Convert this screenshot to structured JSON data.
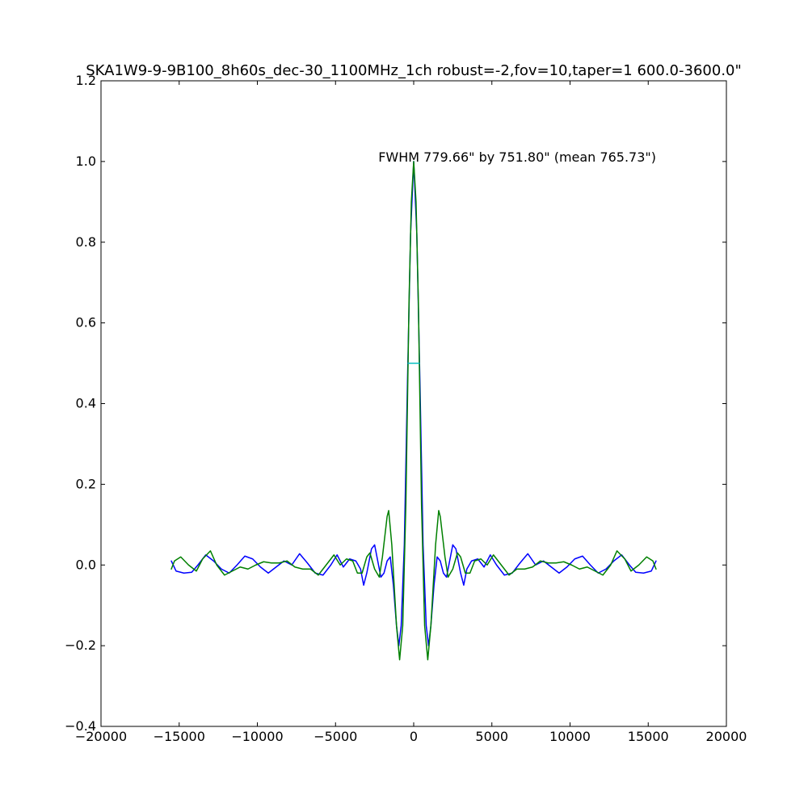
{
  "chart_data": {
    "type": "line",
    "title": "SKA1W9-9-9B100_8h60s_dec-30_1100MHz_1ch robust=-2,fov=10,taper=1  600.0-3600.0\"",
    "xlabel": "",
    "ylabel": "",
    "xlim": [
      -20000,
      20000
    ],
    "ylim": [
      -0.4,
      1.2
    ],
    "xticks": [
      -20000,
      -15000,
      -10000,
      -5000,
      0,
      5000,
      10000,
      15000,
      20000
    ],
    "xtick_labels": [
      "−20000",
      "−15000",
      "−10000",
      "−5000",
      "0",
      "5000",
      "10000",
      "15000",
      "20000"
    ],
    "yticks": [
      -0.4,
      -0.2,
      0.0,
      0.2,
      0.4,
      0.6,
      0.8,
      1.0,
      1.2
    ],
    "ytick_labels": [
      "−0.4",
      "−0.2",
      "0.0",
      "0.2",
      "0.4",
      "0.6",
      "0.8",
      "1.0",
      "1.2"
    ],
    "grid": false,
    "annotation": "FWHM 779.66\" by 751.80\" (mean 765.73\")",
    "fwhm_marker": {
      "x": [
        -383,
        383
      ],
      "y": 0.5,
      "color": "#00bfbf"
    },
    "series": [
      {
        "color": "#0000ff",
        "points": [
          [
            -15500,
            0.01
          ],
          [
            -15200,
            -0.015
          ],
          [
            -14700,
            -0.02
          ],
          [
            -14200,
            -0.018
          ],
          [
            -13800,
            0.0
          ],
          [
            -13300,
            0.025
          ],
          [
            -12800,
            0.01
          ],
          [
            -12300,
            -0.01
          ],
          [
            -11800,
            -0.02
          ],
          [
            -11300,
            0.0
          ],
          [
            -10800,
            0.022
          ],
          [
            -10300,
            0.015
          ],
          [
            -9800,
            -0.005
          ],
          [
            -9300,
            -0.02
          ],
          [
            -8800,
            -0.005
          ],
          [
            -8300,
            0.01
          ],
          [
            -7800,
            0.0
          ],
          [
            -7300,
            0.028
          ],
          [
            -6800,
            0.005
          ],
          [
            -6300,
            -0.02
          ],
          [
            -5800,
            -0.025
          ],
          [
            -5300,
            0.0
          ],
          [
            -4900,
            0.025
          ],
          [
            -4500,
            -0.005
          ],
          [
            -4100,
            0.015
          ],
          [
            -3700,
            0.01
          ],
          [
            -3400,
            -0.01
          ],
          [
            -3200,
            -0.05
          ],
          [
            -3000,
            -0.02
          ],
          [
            -2700,
            0.04
          ],
          [
            -2500,
            0.05
          ],
          [
            -2300,
            0.01
          ],
          [
            -2100,
            -0.03
          ],
          [
            -1900,
            -0.02
          ],
          [
            -1700,
            0.01
          ],
          [
            -1500,
            0.02
          ],
          [
            -1300,
            -0.05
          ],
          [
            -1100,
            -0.15
          ],
          [
            -950,
            -0.2
          ],
          [
            -800,
            -0.15
          ],
          [
            -600,
            0.05
          ],
          [
            -400,
            0.45
          ],
          [
            -200,
            0.82
          ],
          [
            0,
            1.0
          ],
          [
            200,
            0.82
          ],
          [
            400,
            0.45
          ],
          [
            600,
            0.05
          ],
          [
            800,
            -0.15
          ],
          [
            950,
            -0.2
          ],
          [
            1100,
            -0.15
          ],
          [
            1300,
            -0.05
          ],
          [
            1500,
            0.02
          ],
          [
            1700,
            0.01
          ],
          [
            1900,
            -0.02
          ],
          [
            2100,
            -0.03
          ],
          [
            2300,
            0.01
          ],
          [
            2500,
            0.05
          ],
          [
            2700,
            0.04
          ],
          [
            3000,
            -0.02
          ],
          [
            3200,
            -0.05
          ],
          [
            3400,
            -0.01
          ],
          [
            3700,
            0.01
          ],
          [
            4100,
            0.015
          ],
          [
            4500,
            -0.005
          ],
          [
            4900,
            0.025
          ],
          [
            5300,
            0.0
          ],
          [
            5800,
            -0.025
          ],
          [
            6300,
            -0.02
          ],
          [
            6800,
            0.005
          ],
          [
            7300,
            0.028
          ],
          [
            7800,
            0.0
          ],
          [
            8300,
            0.01
          ],
          [
            8800,
            -0.005
          ],
          [
            9300,
            -0.02
          ],
          [
            9800,
            -0.005
          ],
          [
            10300,
            0.015
          ],
          [
            10800,
            0.022
          ],
          [
            11300,
            0.0
          ],
          [
            11800,
            -0.02
          ],
          [
            12300,
            -0.01
          ],
          [
            12800,
            0.01
          ],
          [
            13300,
            0.025
          ],
          [
            13800,
            0.0
          ],
          [
            14200,
            -0.018
          ],
          [
            14700,
            -0.02
          ],
          [
            15200,
            -0.015
          ],
          [
            15500,
            0.01
          ]
        ]
      },
      {
        "color": "#008000",
        "points": [
          [
            -15500,
            -0.01
          ],
          [
            -15300,
            0.01
          ],
          [
            -14900,
            0.02
          ],
          [
            -14400,
            0.0
          ],
          [
            -13900,
            -0.015
          ],
          [
            -13500,
            0.015
          ],
          [
            -13000,
            0.035
          ],
          [
            -12600,
            0.0
          ],
          [
            -12100,
            -0.025
          ],
          [
            -11600,
            -0.015
          ],
          [
            -11100,
            -0.005
          ],
          [
            -10600,
            -0.01
          ],
          [
            -10100,
            0.0
          ],
          [
            -9600,
            0.008
          ],
          [
            -9100,
            0.005
          ],
          [
            -8600,
            0.005
          ],
          [
            -8100,
            0.01
          ],
          [
            -7600,
            -0.005
          ],
          [
            -7100,
            -0.01
          ],
          [
            -6600,
            -0.01
          ],
          [
            -6100,
            -0.025
          ],
          [
            -5600,
            0.0
          ],
          [
            -5100,
            0.025
          ],
          [
            -4700,
            0.0
          ],
          [
            -4300,
            0.015
          ],
          [
            -3900,
            0.01
          ],
          [
            -3600,
            -0.02
          ],
          [
            -3300,
            -0.02
          ],
          [
            -3000,
            0.02
          ],
          [
            -2800,
            0.03
          ],
          [
            -2500,
            -0.01
          ],
          [
            -2200,
            -0.03
          ],
          [
            -2000,
            0.02
          ],
          [
            -1700,
            0.12
          ],
          [
            -1600,
            0.135
          ],
          [
            -1400,
            0.05
          ],
          [
            -1100,
            -0.15
          ],
          [
            -900,
            -0.235
          ],
          [
            -700,
            -0.15
          ],
          [
            -500,
            0.15
          ],
          [
            -300,
            0.65
          ],
          [
            -150,
            0.9
          ],
          [
            0,
            1.0
          ],
          [
            150,
            0.9
          ],
          [
            300,
            0.65
          ],
          [
            500,
            0.15
          ],
          [
            700,
            -0.15
          ],
          [
            900,
            -0.235
          ],
          [
            1100,
            -0.15
          ],
          [
            1400,
            0.05
          ],
          [
            1600,
            0.135
          ],
          [
            1700,
            0.12
          ],
          [
            2000,
            0.02
          ],
          [
            2200,
            -0.03
          ],
          [
            2500,
            -0.01
          ],
          [
            2800,
            0.03
          ],
          [
            3000,
            0.02
          ],
          [
            3300,
            -0.02
          ],
          [
            3600,
            -0.02
          ],
          [
            3900,
            0.01
          ],
          [
            4300,
            0.015
          ],
          [
            4700,
            0.0
          ],
          [
            5100,
            0.025
          ],
          [
            5600,
            0.0
          ],
          [
            6100,
            -0.025
          ],
          [
            6600,
            -0.01
          ],
          [
            7100,
            -0.01
          ],
          [
            7600,
            -0.005
          ],
          [
            8100,
            0.01
          ],
          [
            8600,
            0.005
          ],
          [
            9100,
            0.005
          ],
          [
            9600,
            0.008
          ],
          [
            10100,
            0.0
          ],
          [
            10600,
            -0.01
          ],
          [
            11100,
            -0.005
          ],
          [
            11600,
            -0.015
          ],
          [
            12100,
            -0.025
          ],
          [
            12600,
            0.0
          ],
          [
            13000,
            0.035
          ],
          [
            13500,
            0.015
          ],
          [
            13900,
            -0.015
          ],
          [
            14400,
            0.0
          ],
          [
            14900,
            0.02
          ],
          [
            15300,
            0.01
          ],
          [
            15500,
            -0.01
          ]
        ]
      }
    ]
  }
}
